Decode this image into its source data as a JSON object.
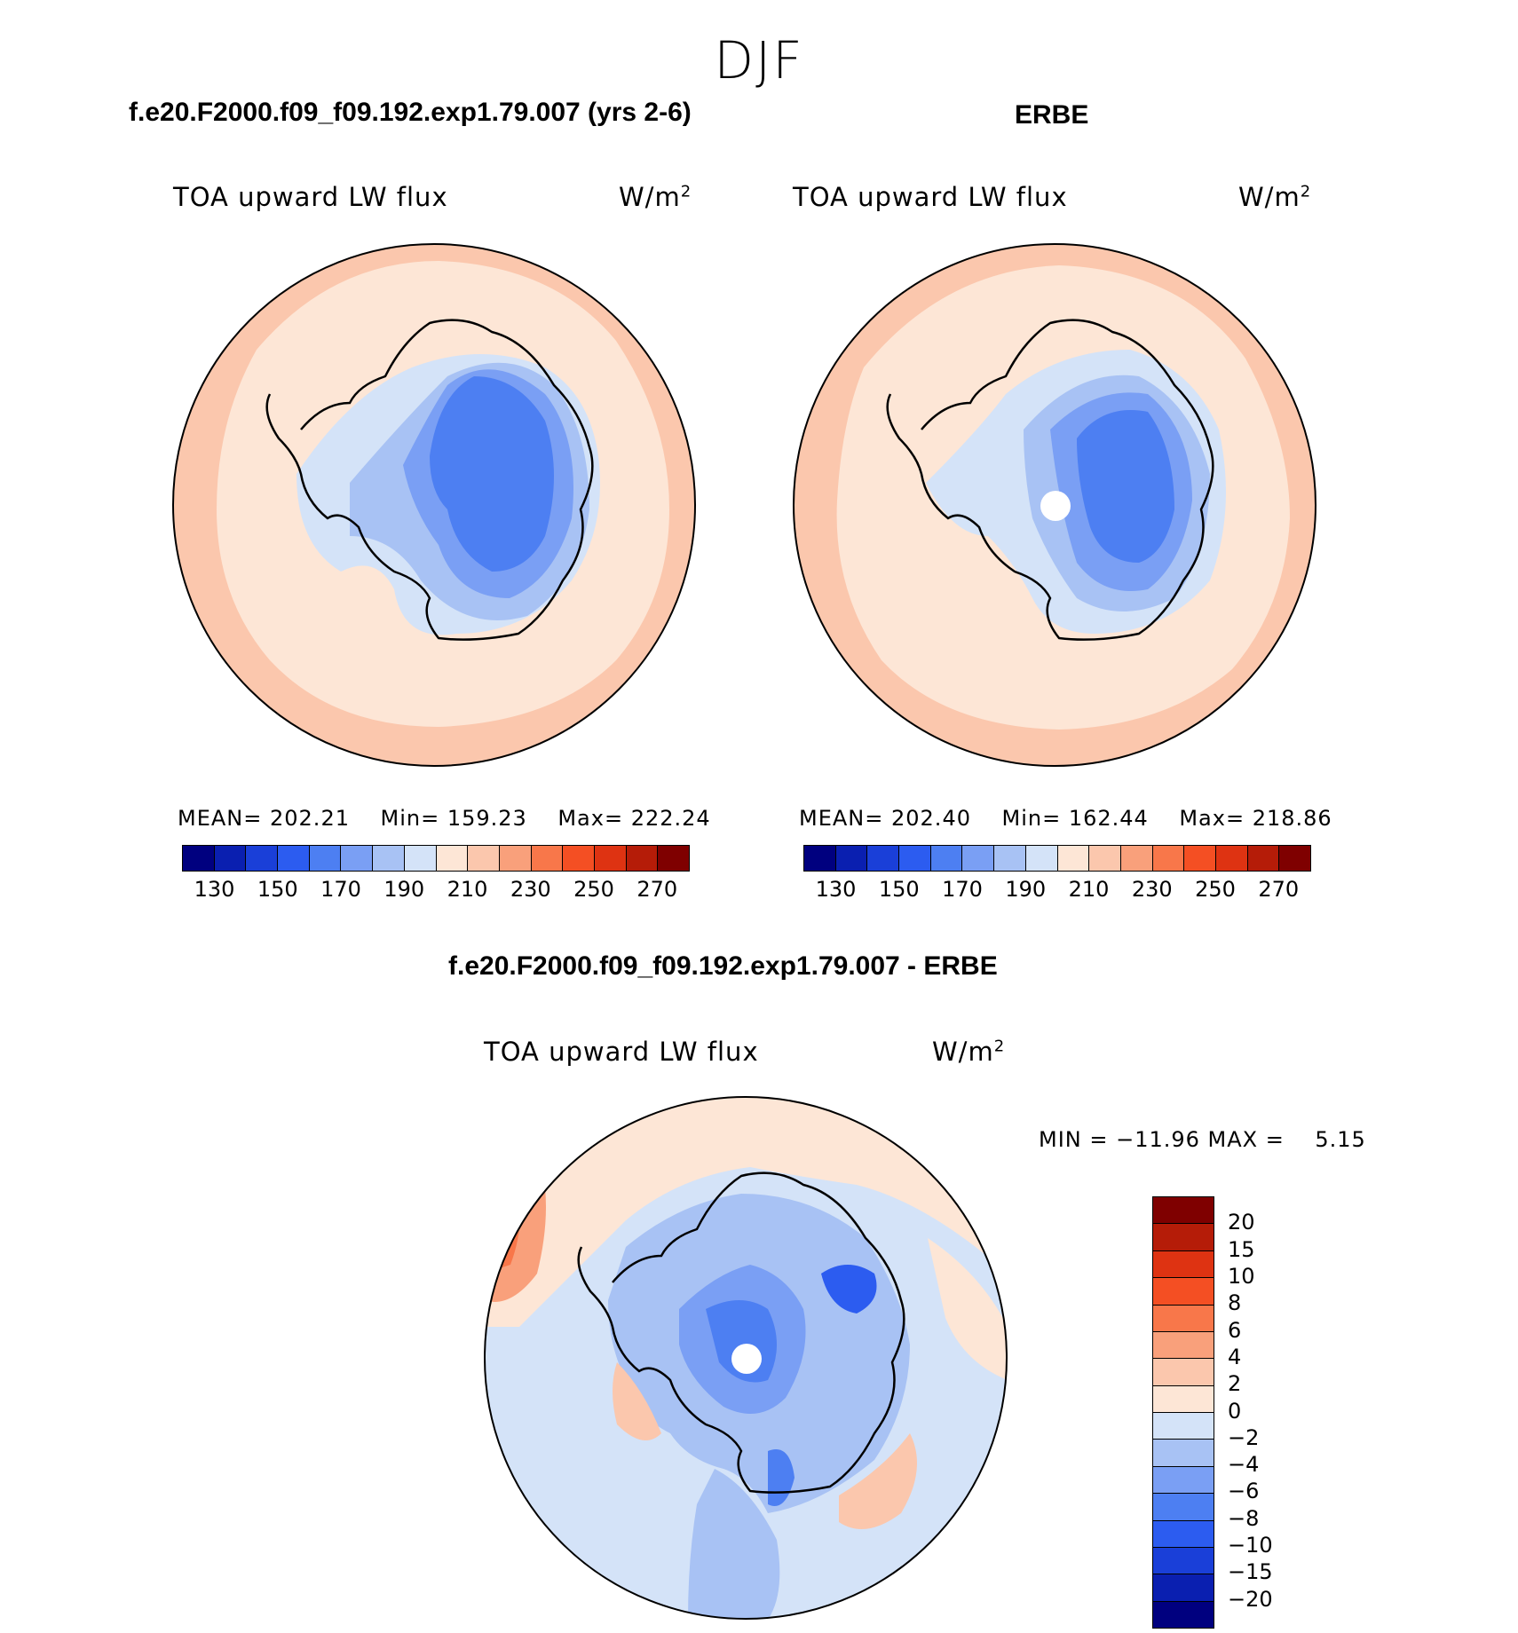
{
  "suptitle": "DJF",
  "panels": [
    {
      "title": "f.e20.F2000.f09_f09.192.exp1.79.007 (yrs 2-6)",
      "field_label": "TOA upward LW flux",
      "units": "W/m",
      "units_exp": "2",
      "mean_label": "MEAN=",
      "mean": "202.21",
      "min_label": "Min=",
      "min": "159.23",
      "max_label": "Max=",
      "max": "222.24"
    },
    {
      "title": "ERBE",
      "field_label": "TOA upward LW flux",
      "units": "W/m",
      "units_exp": "2",
      "mean_label": "MEAN=",
      "mean": "202.40",
      "min_label": "Min=",
      "min": "162.44",
      "max_label": "Max=",
      "max": "218.86"
    }
  ],
  "diff": {
    "title": "f.e20.F2000.f09_f09.192.exp1.79.007 - ERBE",
    "field_label": "TOA upward LW flux",
    "units": "W/m",
    "units_exp": "2",
    "minmax_text": "MIN = −11.96 MAX =",
    "max_value": "5.15"
  },
  "abs_colorbar": {
    "ticks": [
      "130",
      "150",
      "170",
      "190",
      "210",
      "230",
      "250",
      "270"
    ],
    "colors": [
      "#00007f",
      "#0a1fb0",
      "#1a3fd8",
      "#2c5cf0",
      "#4d7ff2",
      "#7a9ff4",
      "#a8c2f4",
      "#d4e3f8",
      "#fde6d6",
      "#fbc7ad",
      "#f9a07b",
      "#f8774a",
      "#f44f23",
      "#de3312",
      "#b51c08",
      "#7f0000"
    ]
  },
  "diff_colorbar": {
    "ticks": [
      "20",
      "15",
      "10",
      "8",
      "6",
      "4",
      "2",
      "0",
      "−2",
      "−4",
      "−6",
      "−8",
      "−10",
      "−15",
      "−20"
    ],
    "colors": [
      "#7f0000",
      "#b51c08",
      "#de3312",
      "#f44f23",
      "#f8774a",
      "#f9a07b",
      "#fbc7ad",
      "#fde6d6",
      "#d4e3f8",
      "#a8c2f4",
      "#7a9ff4",
      "#4d7ff2",
      "#2c5cf0",
      "#1a3fd8",
      "#0a1fb0",
      "#00007f"
    ]
  },
  "chart_data": [
    {
      "type": "heatmap",
      "title": "f.e20.F2000.f09_f09.192.exp1.79.007 (yrs 2-6)",
      "variable": "TOA upward LW flux",
      "units": "W/m2",
      "projection": "south polar stereographic",
      "mean": 202.21,
      "min": 159.23,
      "max": 222.24,
      "levels": [
        130,
        140,
        150,
        160,
        170,
        180,
        190,
        200,
        210,
        220,
        230,
        240,
        250,
        260,
        270
      ]
    },
    {
      "type": "heatmap",
      "title": "ERBE",
      "variable": "TOA upward LW flux",
      "units": "W/m2",
      "projection": "south polar stereographic",
      "mean": 202.4,
      "min": 162.44,
      "max": 218.86,
      "levels": [
        130,
        140,
        150,
        160,
        170,
        180,
        190,
        200,
        210,
        220,
        230,
        240,
        250,
        260,
        270
      ]
    },
    {
      "type": "heatmap",
      "title": "f.e20.F2000.f09_f09.192.exp1.79.007 - ERBE",
      "variable": "TOA upward LW flux",
      "units": "W/m2",
      "projection": "south polar stereographic",
      "min": -11.96,
      "max": 5.15,
      "levels": [
        -20,
        -15,
        -10,
        -8,
        -6,
        -4,
        -2,
        0,
        2,
        4,
        6,
        8,
        10,
        15,
        20
      ]
    }
  ]
}
